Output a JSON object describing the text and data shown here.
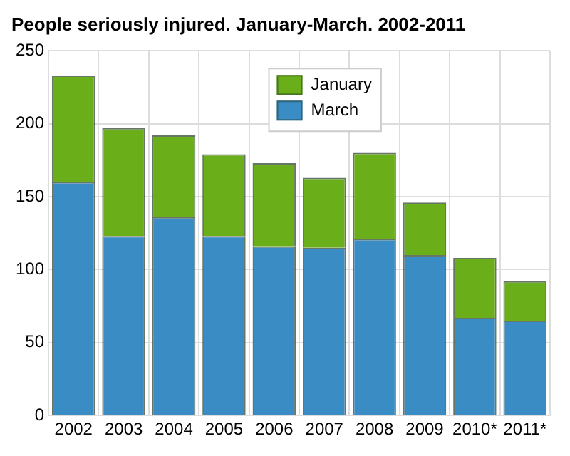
{
  "chart_data": {
    "type": "bar",
    "title": "People seriously injured. January-March. 2002-2011",
    "categories": [
      "2002",
      "2003",
      "2004",
      "2005",
      "2006",
      "2007",
      "2008",
      "2009",
      "2010*",
      "2011*"
    ],
    "series": [
      {
        "name": "March",
        "color": "#3a8cc4",
        "values": [
          160,
          123,
          136,
          123,
          116,
          115,
          121,
          110,
          67,
          65
        ]
      },
      {
        "name": "January",
        "color": "#6aaf1a",
        "values": [
          73,
          74,
          56,
          56,
          57,
          48,
          59,
          36,
          41,
          27
        ]
      }
    ],
    "stacked": true,
    "ylim": [
      0,
      250
    ],
    "yticks": [
      0,
      50,
      100,
      150,
      200,
      250
    ],
    "grid": true,
    "legend": "top"
  }
}
